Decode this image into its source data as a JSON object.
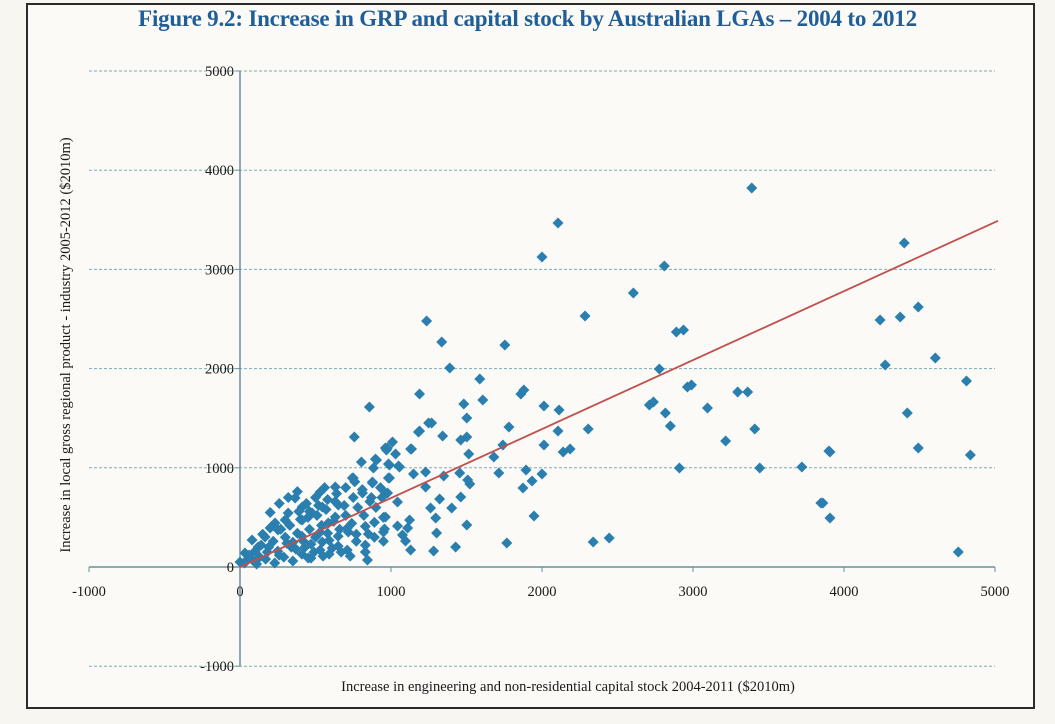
{
  "figure": {
    "title": "Figure 9.2:  Increase in GRP and capital stock by Australian LGAs – 2004 to 2012"
  },
  "colors": {
    "title": "#1f5e99",
    "marker": "#2a7fae",
    "trendline": "#c0504d",
    "gridline": "#7fa9b8",
    "axis": "#6b8f9c"
  },
  "chart_data": {
    "type": "scatter",
    "title": "Figure 9.2:  Increase in GRP and capital stock by Australian LGAs – 2004 to 2012",
    "xlabel": "Increase in engineering and non-residential capital stock 2004-2011 ($2010m)",
    "ylabel": "Increase in local gross regional product - industry 2005-2012 ($2010m)",
    "xlim": [
      -1000,
      5000
    ],
    "ylim": [
      -1000,
      5000
    ],
    "x_ticks": [
      "-1000",
      "0",
      "1000",
      "2000",
      "3000",
      "4000",
      "5000"
    ],
    "y_ticks": [
      "-1000",
      "0",
      "1000",
      "2000",
      "3000",
      "4000",
      "5000"
    ],
    "x_tick_values": [
      -1000,
      0,
      1000,
      2000,
      3000,
      4000,
      5000
    ],
    "y_tick_values": [
      -1000,
      0,
      1000,
      2000,
      3000,
      4000,
      5000
    ],
    "grid": "horizontal-dashed",
    "marker": "diamond",
    "legend": "none",
    "trendline": {
      "type": "linear",
      "x": [
        0,
        5020
      ],
      "y": [
        0,
        3490
      ]
    },
    "points": [
      [
        3389,
        3820
      ],
      [
        2106,
        3468
      ],
      [
        2000,
        3125
      ],
      [
        2810,
        3034
      ],
      [
        2605,
        2762
      ],
      [
        2285,
        2530
      ],
      [
        1236,
        2480
      ],
      [
        1336,
        2268
      ],
      [
        1754,
        2238
      ],
      [
        2890,
        2369
      ],
      [
        2937,
        2389
      ],
      [
        4399,
        3266
      ],
      [
        4492,
        2621
      ],
      [
        4239,
        2490
      ],
      [
        4372,
        2520
      ],
      [
        4273,
        2036
      ],
      [
        4605,
        2107
      ],
      [
        4811,
        1875
      ],
      [
        4419,
        1552
      ],
      [
        3907,
        1159
      ],
      [
        4492,
        1200
      ],
      [
        4837,
        1129
      ],
      [
        3860,
        645
      ],
      [
        3907,
        494
      ],
      [
        4757,
        151
      ],
      [
        2777,
        1996
      ],
      [
        2963,
        1815
      ],
      [
        2990,
        1835
      ],
      [
        2711,
        1633
      ],
      [
        2738,
        1663
      ],
      [
        3296,
        1764
      ],
      [
        3362,
        1764
      ],
      [
        3096,
        1603
      ],
      [
        2817,
        1552
      ],
      [
        2850,
        1421
      ],
      [
        3409,
        1391
      ],
      [
        2306,
        1391
      ],
      [
        3216,
        1270
      ],
      [
        3900,
        1169
      ],
      [
        2910,
        998
      ],
      [
        3442,
        998
      ],
      [
        3721,
        1008
      ],
      [
        3847,
        645
      ],
      [
        2339,
        252
      ],
      [
        2445,
        292
      ],
      [
        1389,
        2006
      ],
      [
        1588,
        1895
      ],
      [
        1189,
        1744
      ],
      [
        1608,
        1683
      ],
      [
        1482,
        1643
      ],
      [
        1860,
        1744
      ],
      [
        1880,
        1784
      ],
      [
        2013,
        1623
      ],
      [
        2113,
        1583
      ],
      [
        1502,
        1502
      ],
      [
        1269,
        1452
      ],
      [
        1781,
        1411
      ],
      [
        1189,
        1371
      ],
      [
        2106,
        1371
      ],
      [
        1342,
        1321
      ],
      [
        1462,
        1280
      ],
      [
        1502,
        1310
      ],
      [
        1741,
        1230
      ],
      [
        2013,
        1230
      ],
      [
        2140,
        1159
      ],
      [
        2186,
        1190
      ],
      [
        1515,
        1139
      ],
      [
        1681,
        1109
      ],
      [
        1130,
        1190
      ],
      [
        1010,
        1260
      ],
      [
        963,
        1200
      ],
      [
        1030,
        1139
      ],
      [
        983,
        1038
      ],
      [
        1050,
        1018
      ],
      [
        1149,
        938
      ],
      [
        1229,
        958
      ],
      [
        1349,
        917
      ],
      [
        1455,
        948
      ],
      [
        1508,
        877
      ],
      [
        1522,
        837
      ],
      [
        1714,
        948
      ],
      [
        1894,
        978
      ],
      [
        1934,
        867
      ],
      [
        2000,
        938
      ],
      [
        1874,
        796
      ],
      [
        990,
        897
      ],
      [
        1229,
        806
      ],
      [
        977,
        746
      ],
      [
        1322,
        685
      ],
      [
        1462,
        706
      ],
      [
        1043,
        655
      ],
      [
        1262,
        595
      ],
      [
        1402,
        595
      ],
      [
        1296,
        494
      ],
      [
        963,
        504
      ],
      [
        1947,
        514
      ],
      [
        1123,
        474
      ],
      [
        1043,
        413
      ],
      [
        1110,
        393
      ],
      [
        957,
        383
      ],
      [
        1502,
        423
      ],
      [
        1302,
        343
      ],
      [
        1076,
        323
      ],
      [
        1096,
        262
      ],
      [
        1130,
        171
      ],
      [
        1282,
        161
      ],
      [
        1428,
        202
      ],
      [
        1767,
        242
      ],
      [
        1249,
        1452
      ],
      [
        1182,
        1361
      ],
      [
        1136,
        1190
      ],
      [
        970,
        1180
      ],
      [
        904,
        1078
      ],
      [
        990,
        1028
      ],
      [
        1056,
        1008
      ],
      [
        750,
        897
      ],
      [
        877,
        857
      ],
      [
        857,
        1613
      ],
      [
        757,
        1310
      ],
      [
        804,
        1058
      ],
      [
        897,
        1088
      ],
      [
        976,
        1200
      ],
      [
        884,
        998
      ],
      [
        983,
        897
      ],
      [
        744,
        897
      ],
      [
        811,
        746
      ],
      [
        877,
        847
      ],
      [
        631,
        806
      ],
      [
        531,
        756
      ],
      [
        365,
        695
      ],
      [
        963,
        746
      ],
      [
        651,
        625
      ],
      [
        850,
        333
      ],
      [
        950,
        353
      ],
      [
        830,
        151
      ],
      [
        844,
        71
      ],
      [
        199,
        393
      ],
      [
        80,
        272
      ],
      [
        452,
        91
      ],
      [
        545,
        252
      ],
      [
        717,
        353
      ],
      [
        478,
        544
      ],
      [
        412,
        474
      ],
      [
        299,
        474
      ],
      [
        252,
        373
      ],
      [
        166,
        302
      ],
      [
        585,
        444
      ],
      [
        631,
        504
      ],
      [
        545,
        605
      ],
      [
        412,
        605
      ],
      [
        319,
        544
      ],
      [
        232,
        444
      ],
      [
        120,
        202
      ],
      [
        33,
        141
      ],
      [
        0,
        50
      ],
      [
        60,
        120
      ],
      [
        90,
        60
      ],
      [
        140,
        220
      ],
      [
        180,
        150
      ],
      [
        220,
        260
      ],
      [
        260,
        120
      ],
      [
        300,
        300
      ],
      [
        340,
        200
      ],
      [
        380,
        340
      ],
      [
        420,
        260
      ],
      [
        460,
        380
      ],
      [
        500,
        300
      ],
      [
        540,
        420
      ],
      [
        580,
        340
      ],
      [
        620,
        460
      ],
      [
        660,
        380
      ],
      [
        700,
        520
      ],
      [
        740,
        440
      ],
      [
        780,
        600
      ],
      [
        820,
        520
      ],
      [
        860,
        660
      ],
      [
        900,
        600
      ],
      [
        940,
        700
      ],
      [
        30,
        40
      ],
      [
        110,
        30
      ],
      [
        170,
        80
      ],
      [
        230,
        40
      ],
      [
        290,
        100
      ],
      [
        350,
        60
      ],
      [
        410,
        130
      ],
      [
        470,
        90
      ],
      [
        530,
        170
      ],
      [
        590,
        130
      ],
      [
        650,
        210
      ],
      [
        710,
        170
      ],
      [
        770,
        260
      ],
      [
        830,
        220
      ],
      [
        890,
        300
      ],
      [
        950,
        260
      ],
      [
        200,
        550
      ],
      [
        260,
        640
      ],
      [
        320,
        700
      ],
      [
        380,
        760
      ],
      [
        440,
        640
      ],
      [
        500,
        700
      ],
      [
        560,
        800
      ],
      [
        400,
        480
      ],
      [
        460,
        560
      ],
      [
        520,
        620
      ],
      [
        580,
        680
      ],
      [
        640,
        740
      ],
      [
        700,
        800
      ],
      [
        760,
        860
      ],
      [
        150,
        330
      ],
      [
        210,
        410
      ],
      [
        270,
        380
      ],
      [
        330,
        420
      ],
      [
        390,
        560
      ],
      [
        450,
        500
      ],
      [
        510,
        520
      ],
      [
        570,
        580
      ],
      [
        630,
        660
      ],
      [
        690,
        620
      ],
      [
        750,
        700
      ],
      [
        810,
        780
      ],
      [
        870,
        700
      ],
      [
        930,
        800
      ],
      [
        350,
        250
      ],
      [
        410,
        310
      ],
      [
        470,
        230
      ],
      [
        530,
        350
      ],
      [
        590,
        270
      ],
      [
        650,
        310
      ],
      [
        710,
        390
      ],
      [
        770,
        330
      ],
      [
        830,
        410
      ],
      [
        890,
        450
      ],
      [
        950,
        500
      ],
      [
        100,
        160
      ],
      [
        50,
        80
      ],
      [
        130,
        100
      ],
      [
        190,
        200
      ],
      [
        250,
        160
      ],
      [
        310,
        240
      ],
      [
        370,
        180
      ],
      [
        430,
        200
      ],
      [
        490,
        150
      ],
      [
        550,
        110
      ],
      [
        610,
        190
      ],
      [
        670,
        150
      ],
      [
        730,
        110
      ]
    ]
  }
}
